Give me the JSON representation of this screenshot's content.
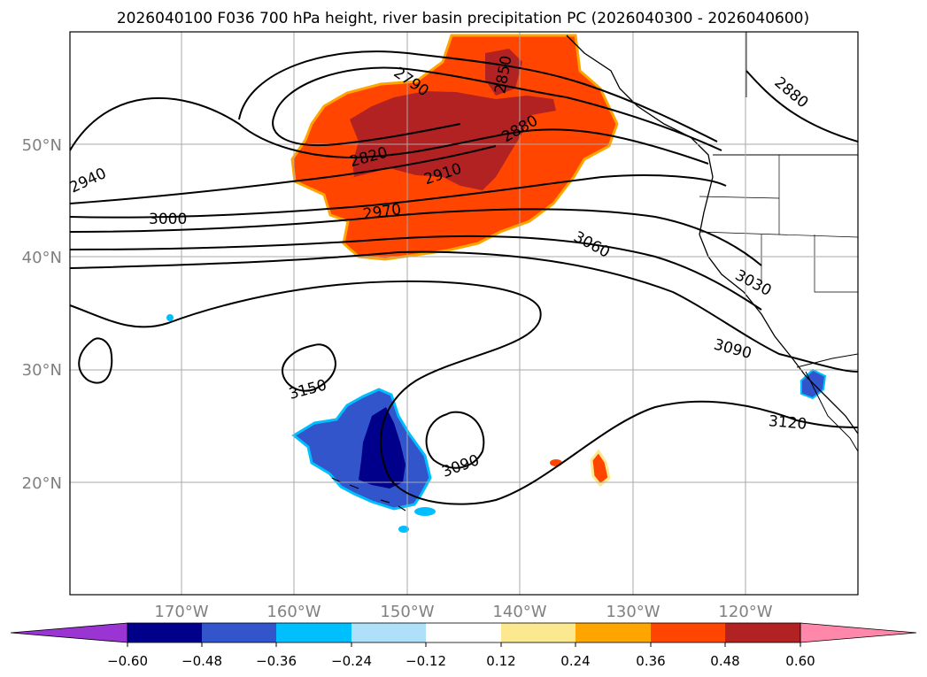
{
  "title": "2026040100 F036 700 hPa height, river basin precipitation PC (2026040300 - 2026040600)",
  "lat_labels": [
    "50°N",
    "40°N",
    "30°N",
    "20°N"
  ],
  "lon_labels": [
    "170°W",
    "160°W",
    "150°W",
    "140°W",
    "130°W",
    "120°W"
  ],
  "contour_labels": [
    "2790",
    "2850",
    "2880",
    "2820",
    "2910",
    "2970",
    "2940",
    "3000",
    "3060",
    "3030",
    "3090",
    "3150",
    "3090",
    "3120",
    "2880"
  ],
  "colorbar": {
    "ticks": [
      "−0.60",
      "−0.48",
      "−0.36",
      "−0.24",
      "−0.12",
      "0.12",
      "0.24",
      "0.36",
      "0.48",
      "0.60"
    ],
    "colors": [
      "#9a35d3",
      "#00008b",
      "#3355cc",
      "#00bfff",
      "#aee0fa",
      "#ffffff",
      "#fce98f",
      "#ffa500",
      "#ff4500",
      "#b22222",
      "#ff88aa",
      "#ff88aa"
    ]
  }
}
